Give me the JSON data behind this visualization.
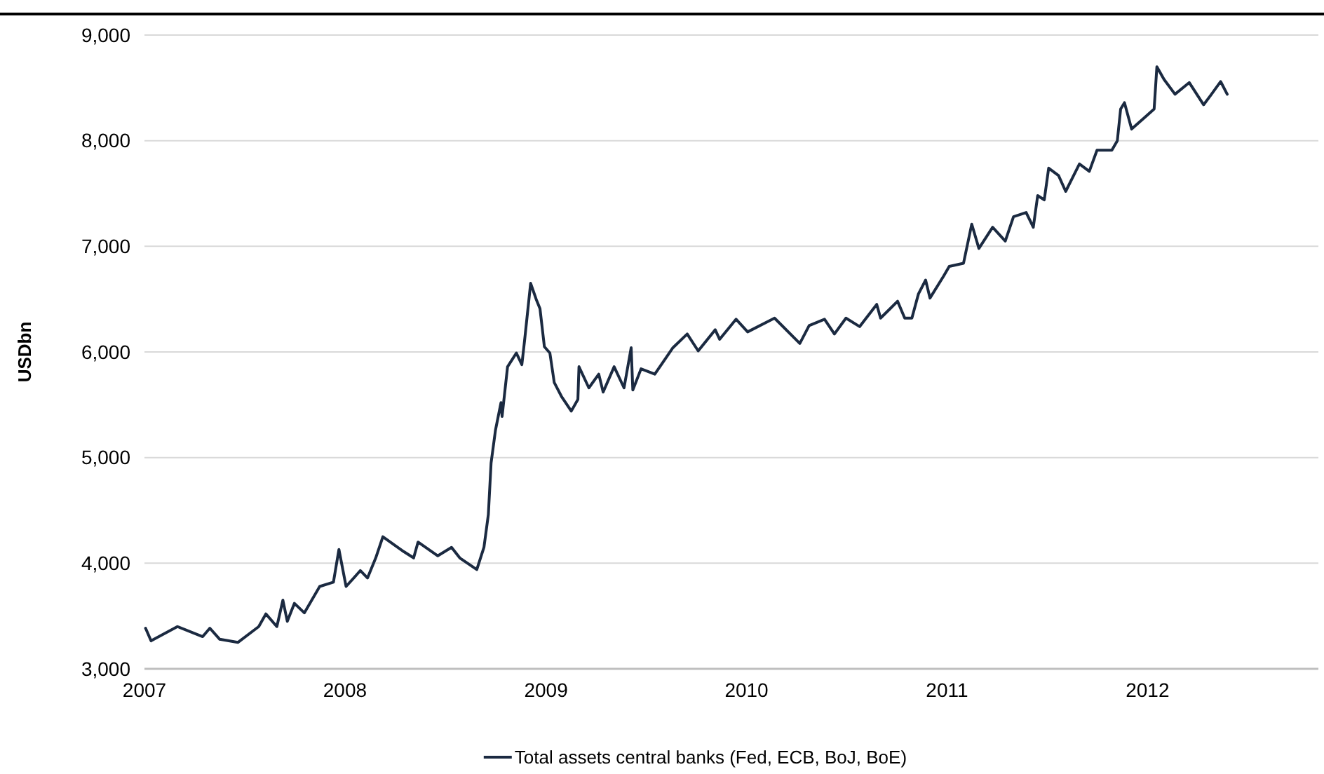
{
  "chart_data": {
    "type": "line",
    "ylabel": "USDbn",
    "xlim": [
      "2007-01-01",
      "2012-11-07"
    ],
    "xticks": [
      {
        "value": "2007-01-01",
        "label": "2007"
      },
      {
        "value": "2008-01-01",
        "label": "2008"
      },
      {
        "value": "2009-01-01",
        "label": "2009"
      },
      {
        "value": "2010-01-01",
        "label": "2010"
      },
      {
        "value": "2011-01-01",
        "label": "2011"
      },
      {
        "value": "2012-01-01",
        "label": "2012"
      }
    ],
    "ylim": [
      3000,
      9000
    ],
    "yticks": [
      {
        "value": 3000,
        "label": "3,000"
      },
      {
        "value": 4000,
        "label": "4,000"
      },
      {
        "value": 5000,
        "label": "5,000"
      },
      {
        "value": 6000,
        "label": "6,000"
      },
      {
        "value": 7000,
        "label": "7,000"
      },
      {
        "value": 8000,
        "label": "8,000"
      },
      {
        "value": 9000,
        "label": "9,000"
      }
    ],
    "grid": "y",
    "legend": "bottom",
    "series": [
      {
        "name": "Total assets central banks (Fed, ECB, BoJ, BoE)",
        "color": "#1b2a41",
        "x": [
          "2007-01-03",
          "2007-01-13",
          "2007-03-02",
          "2007-04-17",
          "2007-04-30",
          "2007-05-18",
          "2007-06-20",
          "2007-07-28",
          "2007-08-10",
          "2007-08-30",
          "2007-09-10",
          "2007-09-18",
          "2007-10-01",
          "2007-10-19",
          "2007-11-16",
          "2007-12-11",
          "2007-12-21",
          "2008-01-03",
          "2008-01-29",
          "2008-02-11",
          "2008-02-26",
          "2008-03-10",
          "2008-04-17",
          "2008-05-05",
          "2008-05-13",
          "2008-06-18",
          "2008-07-13",
          "2008-07-28",
          "2008-08-28",
          "2008-09-10",
          "2008-09-18",
          "2008-09-23",
          "2008-10-01",
          "2008-10-11",
          "2008-10-13",
          "2008-10-23",
          "2008-11-08",
          "2008-11-18",
          "2008-11-23",
          "2008-12-04",
          "2008-12-14",
          "2008-12-21",
          "2008-12-29",
          "2009-01-08",
          "2009-01-16",
          "2009-01-29",
          "2009-02-16",
          "2009-02-28",
          "2009-03-02",
          "2009-03-20",
          "2009-04-07",
          "2009-04-15",
          "2009-05-05",
          "2009-05-23",
          "2009-06-05",
          "2009-06-08",
          "2009-06-23",
          "2009-07-18",
          "2009-08-20",
          "2009-09-15",
          "2009-10-05",
          "2009-11-05",
          "2009-11-13",
          "2009-12-13",
          "2010-01-03",
          "2010-02-21",
          "2010-04-08",
          "2010-04-25",
          "2010-05-23",
          "2010-06-10",
          "2010-07-01",
          "2010-07-26",
          "2010-08-26",
          "2010-09-02",
          "2010-10-03",
          "2010-10-16",
          "2010-10-29",
          "2010-11-10",
          "2010-11-23",
          "2010-12-01",
          "2010-12-26",
          "2011-01-05",
          "2011-01-31",
          "2011-02-15",
          "2011-02-28",
          "2011-03-25",
          "2011-04-17",
          "2011-05-02",
          "2011-05-25",
          "2011-06-07",
          "2011-06-15",
          "2011-06-27",
          "2011-07-05",
          "2011-07-23",
          "2011-08-05",
          "2011-08-30",
          "2011-09-17",
          "2011-10-01",
          "2011-10-28",
          "2011-11-07",
          "2011-11-13",
          "2011-11-20",
          "2011-12-03",
          "2011-12-29",
          "2012-01-13",
          "2012-01-18",
          "2012-01-31",
          "2012-02-20",
          "2012-03-17",
          "2012-04-12",
          "2012-04-25",
          "2012-05-13",
          "2012-05-25"
        ],
        "values": [
          3385,
          3265,
          3400,
          3305,
          3385,
          3280,
          3250,
          3400,
          3520,
          3400,
          3650,
          3450,
          3620,
          3530,
          3780,
          3820,
          4130,
          3780,
          3930,
          3860,
          4050,
          4250,
          4110,
          4050,
          4200,
          4070,
          4150,
          4050,
          3940,
          4150,
          4460,
          4950,
          5260,
          5520,
          5390,
          5860,
          5990,
          5880,
          6110,
          6650,
          6500,
          6410,
          6050,
          5990,
          5710,
          5580,
          5440,
          5550,
          5860,
          5660,
          5790,
          5620,
          5860,
          5660,
          6040,
          5640,
          5840,
          5790,
          6040,
          6170,
          6010,
          6210,
          6120,
          6310,
          6190,
          6320,
          6080,
          6250,
          6310,
          6170,
          6320,
          6240,
          6450,
          6320,
          6480,
          6320,
          6320,
          6550,
          6680,
          6510,
          6720,
          6810,
          6840,
          7210,
          6980,
          7180,
          7050,
          7280,
          7320,
          7180,
          7480,
          7440,
          7740,
          7670,
          7520,
          7780,
          7710,
          7910,
          7910,
          8000,
          8300,
          8360,
          8110,
          8230,
          8300,
          8700,
          8580,
          8440,
          8550,
          8340,
          8430,
          8560,
          8440
        ]
      }
    ]
  }
}
